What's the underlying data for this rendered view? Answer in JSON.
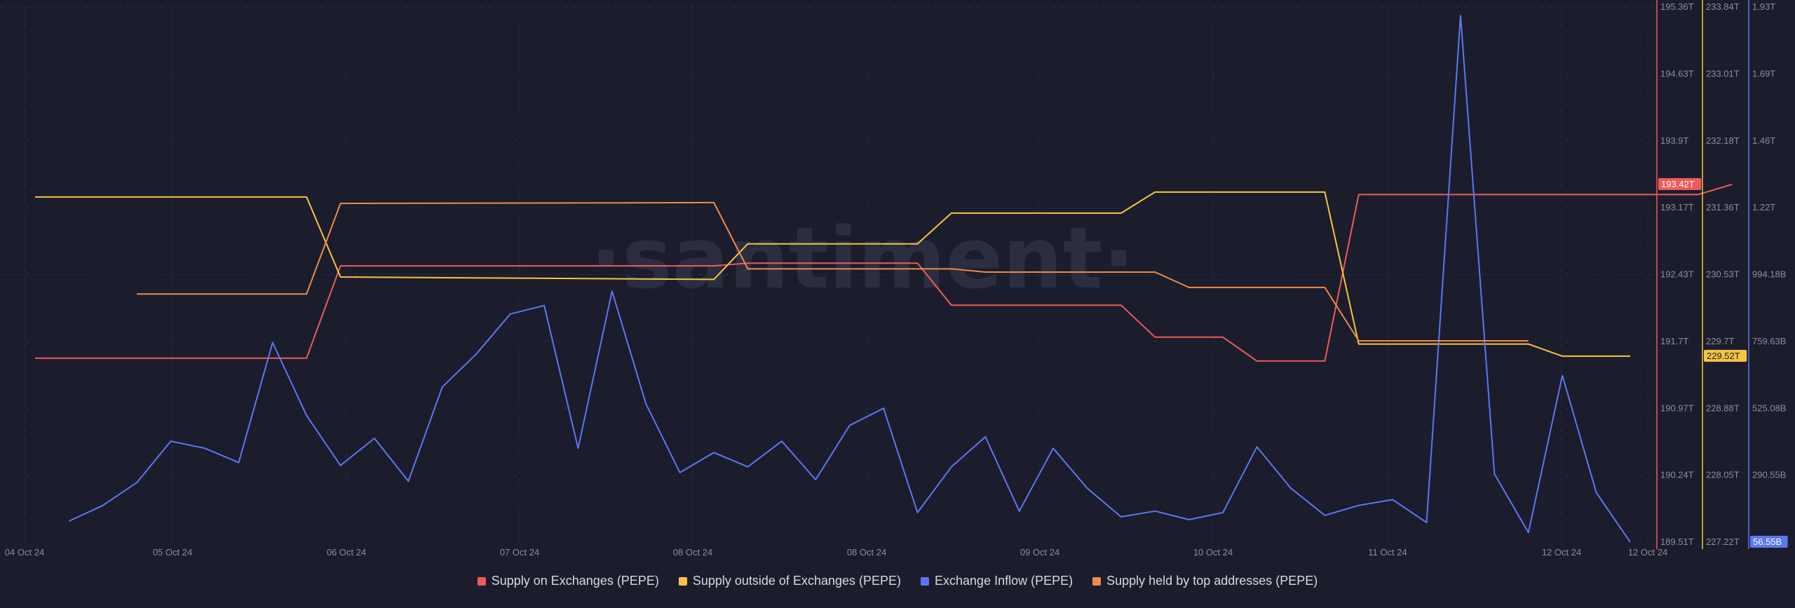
{
  "watermark": "·santiment·",
  "colors": {
    "background": "#1b1d2c",
    "grid": "#2a2d3e",
    "supply_on_exchanges": "#ef5a5a",
    "supply_outside_exchanges": "#f5c542",
    "exchange_inflow": "#5b77f2",
    "top_addresses": "#f08a4b"
  },
  "chart_data": {
    "type": "line",
    "x_tick_labels": [
      "04 Oct 24",
      "05 Oct 24",
      "06 Oct 24",
      "07 Oct 24",
      "08 Oct 24",
      "08 Oct 24",
      "09 Oct 24",
      "10 Oct 24",
      "11 Oct 24",
      "12 Oct 24",
      "12 Oct 24"
    ],
    "axes": [
      {
        "id": "supply_on",
        "ticks": [
          "195.36T",
          "194.63T",
          "193.9T",
          "193.17T",
          "192.43T",
          "191.7T",
          "190.97T",
          "190.24T",
          "189.51T"
        ],
        "ylim": [
          189.51,
          195.36
        ],
        "unit": "T",
        "current_label": "193.42T"
      },
      {
        "id": "supply_out",
        "ticks": [
          "233.84T",
          "233.01T",
          "232.18T",
          "231.36T",
          "230.53T",
          "229.7T",
          "228.88T",
          "228.05T",
          "227.22T"
        ],
        "ylim": [
          227.22,
          233.84
        ],
        "unit": "T",
        "current_label": "229.52T"
      },
      {
        "id": "inflow",
        "ticks": [
          "1.93T",
          "1.69T",
          "1.46T",
          "1.22T",
          "994.18B",
          "759.63B",
          "525.08B",
          "290.55B"
        ],
        "ylim": [
          56.55,
          1930
        ],
        "unit": "B",
        "current_label": "56.55B"
      }
    ],
    "series": [
      {
        "name": "Supply on Exchanges (PEPE)",
        "axis": "supply_on",
        "color": "#ef5a5a",
        "x": [
          0,
          8,
          9,
          20,
          21,
          26,
          27,
          32,
          33,
          35,
          36,
          38,
          39,
          49,
          50
        ],
        "values": [
          191.52,
          191.52,
          192.53,
          192.53,
          192.56,
          192.56,
          192.1,
          192.1,
          191.75,
          191.75,
          191.49,
          191.49,
          193.31,
          193.31,
          193.42
        ]
      },
      {
        "name": "Supply outside of Exchanges (PEPE)",
        "axis": "supply_out",
        "color": "#f5c542",
        "x": [
          0,
          8,
          9,
          20,
          21,
          26,
          27,
          32,
          33,
          38,
          39,
          44,
          45,
          47
        ],
        "values": [
          231.49,
          231.49,
          230.5,
          230.47,
          230.91,
          230.91,
          231.29,
          231.29,
          231.55,
          231.55,
          229.67,
          229.67,
          229.52,
          229.52
        ]
      },
      {
        "name": "Exchange Inflow (PEPE)",
        "axis": "inflow",
        "color": "#5b77f2",
        "x": [
          1,
          2,
          3,
          4,
          5,
          6,
          7,
          8,
          9,
          10,
          11,
          12,
          13,
          14,
          15,
          16,
          17,
          18,
          19,
          20,
          21,
          22,
          23,
          24,
          25,
          26,
          27,
          28,
          29,
          30,
          31,
          32,
          33,
          34,
          35,
          36,
          37,
          38,
          39,
          40,
          41,
          42,
          43,
          44,
          45,
          46,
          47
        ],
        "values": [
          130,
          185,
          265,
          410,
          385,
          335,
          755,
          500,
          325,
          420,
          270,
          600,
          715,
          855,
          885,
          385,
          935,
          540,
          300,
          370,
          320,
          410,
          275,
          465,
          525,
          160,
          320,
          425,
          165,
          385,
          245,
          145,
          165,
          135,
          160,
          390,
          245,
          150,
          185,
          205,
          125,
          1900,
          295,
          90,
          640,
          230,
          56.55
        ]
      },
      {
        "name": "Supply held by top addresses (PEPE)",
        "axis": "supply_out",
        "color": "#f08a4b",
        "x": [
          3,
          8,
          9,
          20,
          21,
          27,
          28,
          33,
          34,
          38,
          39,
          44
        ],
        "values": [
          230.29,
          230.29,
          231.41,
          231.42,
          230.6,
          230.6,
          230.56,
          230.56,
          230.37,
          230.37,
          229.71,
          229.71
        ]
      }
    ]
  }
}
